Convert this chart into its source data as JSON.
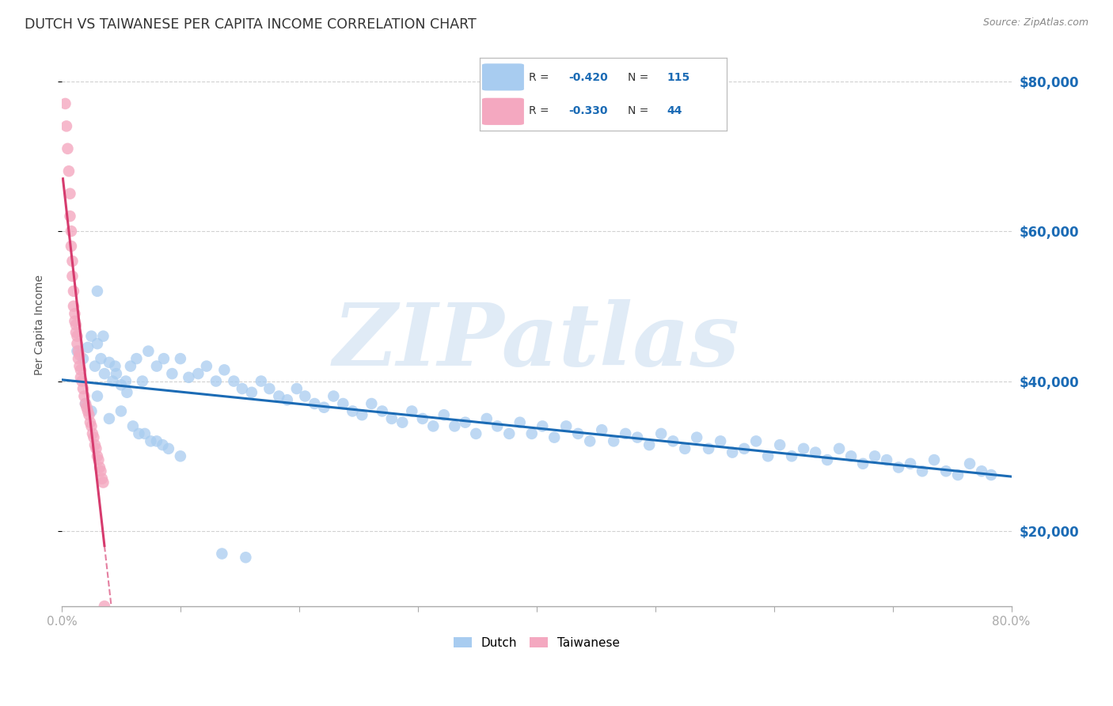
{
  "title": "DUTCH VS TAIWANESE PER CAPITA INCOME CORRELATION CHART",
  "source": "Source: ZipAtlas.com",
  "ylabel": "Per Capita Income",
  "xlim": [
    0.0,
    0.8
  ],
  "ylim": [
    10000,
    85000
  ],
  "yticks": [
    20000,
    40000,
    60000,
    80000
  ],
  "ytick_labels": [
    "$20,000",
    "$40,000",
    "$60,000",
    "$80,000"
  ],
  "xtick_vals": [
    0.0,
    0.1,
    0.2,
    0.3,
    0.4,
    0.5,
    0.6,
    0.7,
    0.8
  ],
  "xtick_labels": [
    "0.0%",
    "",
    "",
    "",
    "",
    "",
    "",
    "",
    "80.0%"
  ],
  "dutch_R": "-0.420",
  "dutch_N": "115",
  "taiwanese_R": "-0.330",
  "taiwanese_N": "44",
  "dutch_color": "#A8CCF0",
  "dutch_line_color": "#1B6BB5",
  "taiwanese_color": "#F4A8C0",
  "taiwanese_line_color": "#D63B6E",
  "background_color": "#FFFFFF",
  "grid_color": "#CCCCCC",
  "watermark": "ZIPatlas",
  "watermark_color": "#C8DCF0",
  "dutch_x": [
    0.013,
    0.018,
    0.022,
    0.025,
    0.028,
    0.03,
    0.033,
    0.036,
    0.04,
    0.043,
    0.046,
    0.05,
    0.054,
    0.058,
    0.063,
    0.068,
    0.073,
    0.08,
    0.086,
    0.093,
    0.1,
    0.107,
    0.115,
    0.122,
    0.13,
    0.137,
    0.145,
    0.152,
    0.16,
    0.168,
    0.175,
    0.183,
    0.19,
    0.198,
    0.205,
    0.213,
    0.221,
    0.229,
    0.237,
    0.245,
    0.253,
    0.261,
    0.27,
    0.278,
    0.287,
    0.295,
    0.304,
    0.313,
    0.322,
    0.331,
    0.34,
    0.349,
    0.358,
    0.367,
    0.377,
    0.386,
    0.396,
    0.405,
    0.415,
    0.425,
    0.435,
    0.445,
    0.455,
    0.465,
    0.475,
    0.485,
    0.495,
    0.505,
    0.515,
    0.525,
    0.535,
    0.545,
    0.555,
    0.565,
    0.575,
    0.585,
    0.595,
    0.605,
    0.615,
    0.625,
    0.635,
    0.645,
    0.655,
    0.665,
    0.675,
    0.685,
    0.695,
    0.705,
    0.715,
    0.725,
    0.735,
    0.745,
    0.755,
    0.765,
    0.775,
    0.783,
    0.03,
    0.025,
    0.02,
    0.04,
    0.05,
    0.06,
    0.07,
    0.08,
    0.09,
    0.1,
    0.03,
    0.035,
    0.045,
    0.055,
    0.065,
    0.075,
    0.085,
    0.135,
    0.155
  ],
  "dutch_y": [
    44000,
    43000,
    44500,
    46000,
    42000,
    45000,
    43000,
    41000,
    42500,
    40000,
    41000,
    39500,
    40000,
    42000,
    43000,
    40000,
    44000,
    42000,
    43000,
    41000,
    43000,
    40500,
    41000,
    42000,
    40000,
    41500,
    40000,
    39000,
    38500,
    40000,
    39000,
    38000,
    37500,
    39000,
    38000,
    37000,
    36500,
    38000,
    37000,
    36000,
    35500,
    37000,
    36000,
    35000,
    34500,
    36000,
    35000,
    34000,
    35500,
    34000,
    34500,
    33000,
    35000,
    34000,
    33000,
    34500,
    33000,
    34000,
    32500,
    34000,
    33000,
    32000,
    33500,
    32000,
    33000,
    32500,
    31500,
    33000,
    32000,
    31000,
    32500,
    31000,
    32000,
    30500,
    31000,
    32000,
    30000,
    31500,
    30000,
    31000,
    30500,
    29500,
    31000,
    30000,
    29000,
    30000,
    29500,
    28500,
    29000,
    28000,
    29500,
    28000,
    27500,
    29000,
    28000,
    27500,
    38000,
    36000,
    37000,
    35000,
    36000,
    34000,
    33000,
    32000,
    31000,
    30000,
    52000,
    46000,
    42000,
    38500,
    33000,
    32000,
    31500,
    17000,
    16500
  ],
  "taiwanese_x": [
    0.003,
    0.004,
    0.005,
    0.006,
    0.007,
    0.007,
    0.008,
    0.008,
    0.009,
    0.009,
    0.01,
    0.01,
    0.011,
    0.011,
    0.012,
    0.012,
    0.013,
    0.013,
    0.014,
    0.014,
    0.015,
    0.015,
    0.016,
    0.016,
    0.017,
    0.018,
    0.019,
    0.02,
    0.021,
    0.022,
    0.023,
    0.024,
    0.025,
    0.026,
    0.027,
    0.028,
    0.029,
    0.03,
    0.031,
    0.032,
    0.033,
    0.034,
    0.035,
    0.036
  ],
  "taiwanese_y": [
    77000,
    74000,
    71000,
    68000,
    65000,
    62000,
    60000,
    58000,
    56000,
    54000,
    52000,
    50000,
    49000,
    48000,
    47500,
    46500,
    46000,
    45000,
    44000,
    43000,
    43500,
    42000,
    41500,
    40500,
    40000,
    39000,
    38000,
    37000,
    36500,
    36000,
    35500,
    34500,
    34000,
    33000,
    32500,
    31500,
    31000,
    30000,
    29500,
    28500,
    28000,
    27000,
    26500,
    10000
  ]
}
